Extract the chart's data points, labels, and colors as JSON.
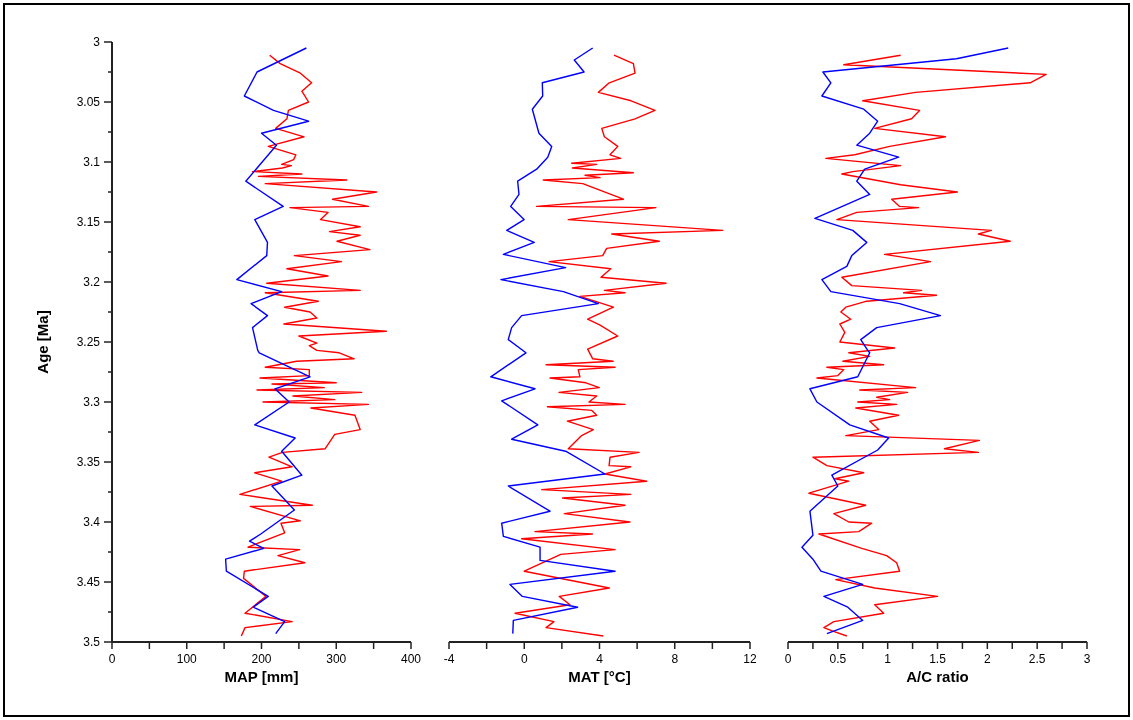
{
  "chart_data": [
    {
      "type": "line",
      "xlabel": "MAP [mm]",
      "ylabel": "Age [Ma]",
      "xlim": [
        0,
        400
      ],
      "ylim": [
        3.5,
        3
      ],
      "xticks": [
        0,
        {
          "value": 50,
          "label": null
        },
        100,
        {
          "value": 150,
          "label": null
        },
        200,
        {
          "value": 250,
          "label": null
        },
        300,
        {
          "value": 350,
          "label": null
        },
        400
      ],
      "yticks": [
        3,
        {
          "value": 3.025,
          "label": null
        },
        3.05,
        {
          "value": 3.075,
          "label": null
        },
        3.1,
        {
          "value": 3.125,
          "label": null
        },
        3.15,
        {
          "value": 3.175,
          "label": null
        },
        3.2,
        {
          "value": 3.225,
          "label": null
        },
        3.25,
        {
          "value": 3.275,
          "label": null
        },
        3.3,
        {
          "value": 3.325,
          "label": null
        },
        3.35,
        {
          "value": 3.375,
          "label": null
        },
        3.4,
        {
          "value": 3.425,
          "label": null
        },
        3.45,
        {
          "value": 3.475,
          "label": null
        },
        3.5
      ],
      "series": [
        {
          "color": "#ff0000",
          "x": [
            211,
            225,
            252,
            267,
            254,
            263,
            236,
            234,
            219,
            257,
            209,
            246,
            243,
            227,
            240,
            228,
            188,
            254,
            196,
            314,
            205,
            354,
            295,
            343,
            238,
            289,
            279,
            332,
            291,
            332,
            301,
            345,
            244,
            307,
            234,
            289,
            207,
            332,
            205,
            276,
            231,
            265,
            274,
            230,
            367,
            250,
            274,
            264,
            274,
            304,
            324,
            247,
            205,
            264,
            264,
            198,
            300,
            214,
            284,
            194,
            334,
            242,
            298,
            202,
            343,
            266,
            325,
            332,
            298,
            285,
            228,
            210,
            241,
            191,
            227,
            171,
            268,
            185,
            252,
            226,
            231,
            182,
            251,
            222,
            258,
            177,
            176,
            206,
            178,
            241,
            178,
            173
          ],
          "values": [
            3.011,
            3.018,
            3.026,
            3.034,
            3.041,
            3.05,
            3.057,
            3.064,
            3.072,
            3.079,
            3.087,
            3.094,
            3.098,
            3.102,
            3.103,
            3.105,
            3.108,
            3.11,
            3.112,
            3.115,
            3.118,
            3.125,
            3.131,
            3.137,
            3.138,
            3.142,
            3.148,
            3.154,
            3.158,
            3.161,
            3.166,
            3.173,
            3.178,
            3.183,
            3.189,
            3.195,
            3.201,
            3.207,
            3.209,
            3.216,
            3.221,
            3.225,
            3.23,
            3.235,
            3.241,
            3.245,
            3.251,
            3.253,
            3.257,
            3.259,
            3.264,
            3.266,
            3.271,
            3.273,
            3.278,
            3.28,
            3.284,
            3.285,
            3.288,
            3.29,
            3.292,
            3.295,
            3.298,
            3.3,
            3.302,
            3.305,
            3.311,
            3.323,
            3.327,
            3.339,
            3.342,
            3.346,
            3.354,
            3.359,
            3.366,
            3.377,
            3.386,
            3.387,
            3.399,
            3.401,
            3.409,
            3.421,
            3.423,
            3.428,
            3.434,
            3.441,
            3.447,
            3.462,
            3.476,
            3.483,
            3.488,
            3.495
          ]
        },
        {
          "color": "#0000ff",
          "x": [
            260,
            194,
            177,
            216,
            263,
            200,
            220,
            179,
            229,
            191,
            208,
            207,
            167,
            227,
            186,
            208,
            188,
            195,
            197,
            265,
            218,
            237,
            191,
            245,
            227,
            254,
            214,
            244,
            199,
            184,
            203,
            152,
            153,
            209,
            189,
            231,
            219
          ],
          "values": [
            3.005,
            3.025,
            3.045,
            3.057,
            3.066,
            3.076,
            3.086,
            3.116,
            3.137,
            3.148,
            3.167,
            3.178,
            3.198,
            3.208,
            3.218,
            3.228,
            3.238,
            3.257,
            3.259,
            3.279,
            3.289,
            3.3,
            3.319,
            3.33,
            3.341,
            3.361,
            3.37,
            3.39,
            3.41,
            3.416,
            3.422,
            3.431,
            3.441,
            3.462,
            3.471,
            3.483,
            3.493
          ]
        }
      ]
    },
    {
      "type": "line",
      "xlabel": "MAT [°C]",
      "tick_labels": "x",
      "xlim": [
        -4,
        12
      ],
      "ylim": [
        3.5,
        3
      ],
      "xticks": [
        -4,
        {
          "value": -2,
          "label": null
        },
        0,
        {
          "value": 2,
          "label": null
        },
        4,
        {
          "value": 6,
          "label": null
        },
        8,
        {
          "value": 10,
          "label": null
        },
        12
      ],
      "series": [
        {
          "color": "#ff0000",
          "x": [
            4.77,
            5.8,
            5.89,
            4.52,
            3.94,
            5.68,
            6.95,
            5.89,
            4.12,
            4.26,
            4.97,
            4.56,
            5.13,
            2.52,
            3.85,
            2.56,
            5.8,
            3.23,
            4.03,
            1.01,
            3.11,
            5.27,
            0.66,
            7.0,
            2.34,
            10.55,
            4.65,
            7.18,
            4.38,
            4.17,
            1.32,
            4.6,
            4.08,
            7.54,
            4.26,
            5.36,
            2.96,
            4.74,
            3.37,
            4.03,
            4.97,
            3.37,
            3.64,
            4.73,
            1.16,
            4.83,
            2.87,
            2.96,
            1.37,
            3.28,
            3.99,
            1.85,
            3.85,
            3.44,
            5.36,
            1.23,
            3.59,
            3.85,
            2.29,
            3.67,
            3.05,
            2.34,
            6.1,
            4.56,
            4.51,
            5.66,
            4.29,
            6.51,
            0.93,
            5.66,
            2.04,
            5.36,
            2.13,
            5.62,
            0.57,
            3.62,
            -0.14,
            4.83,
            1.94,
            0.0,
            4.52,
            1.86,
            2.43,
            -0.49,
            1.58,
            1.16,
            4.2
          ],
          "values": [
            3.011,
            3.018,
            3.026,
            3.034,
            3.042,
            3.049,
            3.057,
            3.064,
            3.072,
            3.079,
            3.087,
            3.094,
            3.097,
            3.101,
            3.102,
            3.105,
            3.109,
            3.111,
            3.113,
            3.115,
            3.118,
            3.131,
            3.137,
            3.138,
            3.148,
            3.157,
            3.16,
            3.166,
            3.172,
            3.178,
            3.183,
            3.189,
            3.196,
            3.201,
            3.207,
            3.209,
            3.212,
            3.221,
            3.231,
            3.236,
            3.245,
            3.256,
            3.264,
            3.266,
            3.269,
            3.271,
            3.273,
            3.279,
            3.28,
            3.284,
            3.288,
            3.292,
            3.295,
            3.3,
            3.302,
            3.304,
            3.307,
            3.311,
            3.316,
            3.323,
            3.328,
            3.339,
            3.342,
            3.346,
            3.353,
            3.354,
            3.36,
            3.366,
            3.373,
            3.377,
            3.38,
            3.386,
            3.393,
            3.4,
            3.408,
            3.41,
            3.414,
            3.423,
            3.427,
            3.441,
            3.455,
            3.462,
            3.469,
            3.476,
            3.483,
            3.488,
            3.495
          ]
        },
        {
          "color": "#0000ff",
          "x": [
            3.64,
            2.66,
            3.18,
            0.96,
            0.98,
            0.43,
            0.78,
            1.46,
            1.25,
            0.66,
            -0.35,
            -0.28,
            -0.72,
            -0.01,
            -0.93,
            0.53,
            -1.11,
            2.2,
            -1.24,
            2.08,
            3.94,
            -0.14,
            -0.67,
            -0.85,
            0.09,
            -1.78,
            0.57,
            -1.2,
            0.72,
            -0.67,
            2.2,
            4.29,
            -0.85,
            1.37,
            -1.2,
            -1.11,
            0.84,
            0.84,
            4.83,
            -0.76,
            -0.1,
            2.84,
            -0.58,
            -0.61
          ],
          "values": [
            3.005,
            3.015,
            3.025,
            3.034,
            3.045,
            3.056,
            3.076,
            3.087,
            3.096,
            3.106,
            3.116,
            3.127,
            3.137,
            3.148,
            3.157,
            3.167,
            3.177,
            3.188,
            3.198,
            3.208,
            3.218,
            3.228,
            3.238,
            3.248,
            3.259,
            3.279,
            3.289,
            3.299,
            3.319,
            3.331,
            3.341,
            3.36,
            3.37,
            3.391,
            3.401,
            3.412,
            3.421,
            3.432,
            3.441,
            3.452,
            3.462,
            3.471,
            3.482,
            3.493
          ]
        }
      ]
    },
    {
      "type": "line",
      "xlabel": "A/C ratio",
      "tick_labels": "x",
      "xlim": [
        0,
        3
      ],
      "ylim": [
        3.5,
        3
      ],
      "xticks": [
        0,
        {
          "value": 0.25,
          "label": null
        },
        0.5,
        {
          "value": 0.75,
          "label": null
        },
        1,
        {
          "value": 1.25,
          "label": null
        },
        1.5,
        {
          "value": 1.75,
          "label": null
        },
        2,
        {
          "value": 2.25,
          "label": null
        },
        2.5,
        {
          "value": 2.75,
          "label": null
        },
        3
      ],
      "series": [
        {
          "color": "#ff0000",
          "x": [
            1.13,
            0.56,
            2.59,
            2.43,
            1.28,
            0.75,
            1.32,
            1.24,
            0.87,
            1.58,
            1.02,
            0.67,
            0.38,
            1.13,
            0.65,
            0.54,
            1.13,
            1.7,
            1.04,
            1.12,
            1.31,
            0.69,
            0.49,
            2.04,
            1.91,
            2.23,
            0.97,
            1.43,
            0.54,
            0.64,
            1.34,
            1.16,
            1.49,
            0.79,
            0.58,
            0.53,
            0.63,
            0.52,
            0.57,
            0.52,
            1.07,
            0.61,
            0.82,
            0.55,
            0.96,
            0.39,
            0.56,
            0.5,
            0.29,
            1.28,
            0.72,
            1.2,
            0.89,
            1.02,
            0.7,
            1.09,
            0.68,
            1.11,
            0.82,
            0.91,
            0.58,
            1.92,
            1.57,
            1.91,
            0.25,
            0.39,
            0.76,
            0.47,
            0.61,
            0.21,
            0.78,
            0.46,
            0.61,
            0.84,
            0.71,
            0.31,
            0.74,
            0.99,
            1.09,
            1.12,
            0.48,
            0.87,
            1.5,
            0.87,
            0.96,
            0.46,
            0.36,
            0.45,
            0.59
          ],
          "values": [
            3.011,
            3.019,
            3.027,
            3.034,
            3.042,
            3.049,
            3.057,
            3.064,
            3.072,
            3.079,
            3.087,
            3.094,
            3.097,
            3.103,
            3.108,
            3.11,
            3.119,
            3.125,
            3.131,
            3.137,
            3.138,
            3.142,
            3.148,
            3.157,
            3.16,
            3.166,
            3.177,
            3.183,
            3.196,
            3.203,
            3.207,
            3.209,
            3.211,
            3.216,
            3.221,
            3.225,
            3.231,
            3.235,
            3.242,
            3.25,
            3.255,
            3.259,
            3.262,
            3.266,
            3.269,
            3.271,
            3.273,
            3.278,
            3.28,
            3.288,
            3.29,
            3.292,
            3.296,
            3.298,
            3.3,
            3.302,
            3.305,
            3.311,
            3.316,
            3.323,
            3.328,
            3.332,
            3.339,
            3.342,
            3.346,
            3.353,
            3.359,
            3.364,
            3.366,
            3.376,
            3.386,
            3.393,
            3.4,
            3.401,
            3.408,
            3.41,
            3.422,
            3.428,
            3.434,
            3.441,
            3.448,
            3.455,
            3.462,
            3.469,
            3.476,
            3.483,
            3.488,
            3.491,
            3.495
          ]
        },
        {
          "color": "#0000ff",
          "x": [
            2.21,
            1.69,
            0.35,
            0.43,
            0.34,
            0.76,
            0.9,
            0.82,
            0.69,
            1.11,
            0.77,
            0.69,
            0.82,
            0.27,
            0.65,
            0.79,
            0.64,
            0.59,
            0.34,
            0.43,
            1.12,
            1.53,
            0.89,
            0.73,
            0.8,
            0.82,
            0.7,
            0.22,
            0.29,
            0.62,
            1.01,
            0.9,
            0.44,
            0.5,
            0.22,
            0.25,
            0.14,
            0.25,
            0.33,
            0.75,
            0.36,
            0.6,
            0.75,
            0.39
          ],
          "values": [
            3.005,
            3.014,
            3.025,
            3.034,
            3.045,
            3.056,
            3.066,
            3.076,
            3.086,
            3.096,
            3.106,
            3.116,
            3.127,
            3.147,
            3.157,
            3.167,
            3.178,
            3.187,
            3.198,
            3.208,
            3.218,
            3.228,
            3.238,
            3.248,
            3.257,
            3.259,
            3.279,
            3.289,
            3.3,
            3.319,
            3.33,
            3.34,
            3.361,
            3.37,
            3.391,
            3.411,
            3.421,
            3.431,
            3.441,
            3.452,
            3.462,
            3.471,
            3.482,
            3.493
          ]
        }
      ]
    }
  ]
}
